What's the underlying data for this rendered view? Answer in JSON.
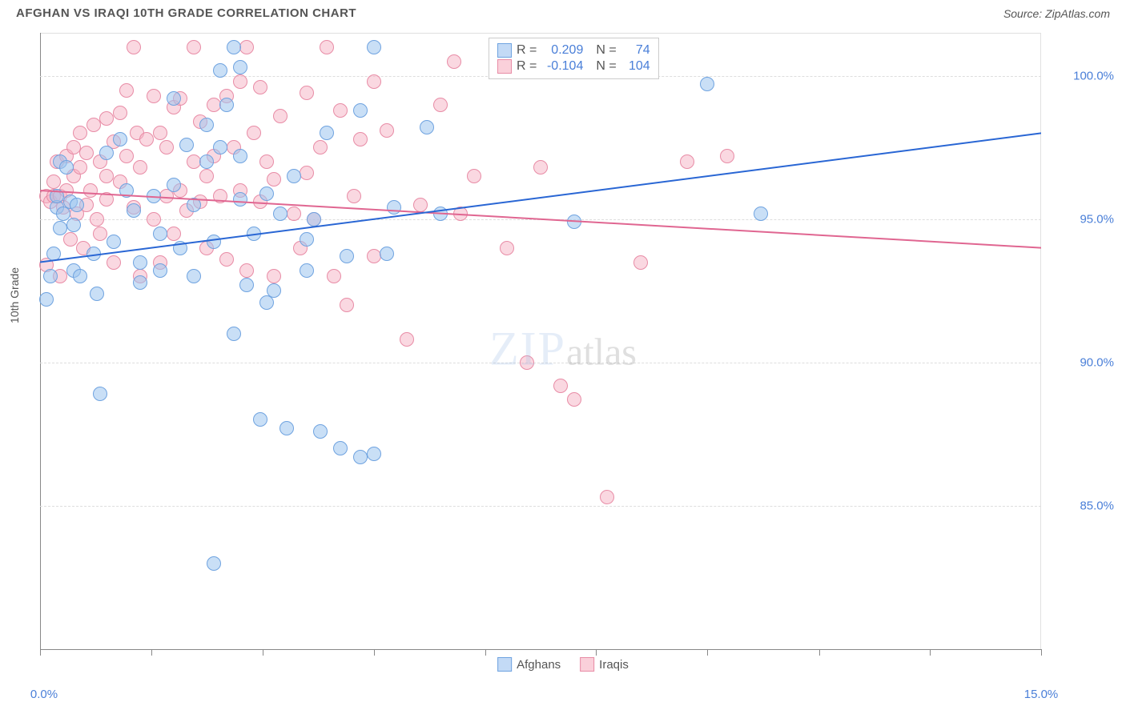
{
  "title": "AFGHAN VS IRAQI 10TH GRADE CORRELATION CHART",
  "source": "Source: ZipAtlas.com",
  "ylabel": "10th Grade",
  "watermark_zip": "ZIP",
  "watermark_atlas": "atlas",
  "chart": {
    "type": "scatter",
    "background_color": "#ffffff",
    "grid_color": "#dddddd",
    "axis_color": "#888888",
    "text_color": "#555555",
    "value_color": "#4a7fd8",
    "xlim": [
      0,
      15
    ],
    "ylim": [
      80,
      101.5
    ],
    "xticks": [
      0,
      1.67,
      3.33,
      5.0,
      6.67,
      8.33,
      10.0,
      11.67,
      13.33,
      15.0
    ],
    "xtick_labels": {
      "0": "0.0%",
      "15": "15.0%"
    },
    "yticks": [
      85,
      90,
      95,
      100
    ],
    "ytick_labels": [
      "85.0%",
      "90.0%",
      "95.0%",
      "100.0%"
    ],
    "point_radius": 9,
    "point_stroke_width": 1.5,
    "trend_width": 2
  },
  "legend_bottom": [
    {
      "label": "Afghans",
      "fill": "#c3daf6",
      "stroke": "#6fa3e0"
    },
    {
      "label": "Iraqis",
      "fill": "#fad0da",
      "stroke": "#e88ca6"
    }
  ],
  "stats": [
    {
      "fill": "#c3daf6",
      "stroke": "#6fa3e0",
      "r_label": "R =",
      "r_val": "0.209",
      "n_label": "N =",
      "n_val": "74"
    },
    {
      "fill": "#fad0da",
      "stroke": "#e88ca6",
      "r_label": "R =",
      "r_val": "-0.104",
      "n_label": "N =",
      "n_val": "104"
    }
  ],
  "series": {
    "afghans": {
      "fill": "rgba(157,197,238,0.55)",
      "stroke": "#6fa3e0",
      "trend_color": "#2966d4",
      "trend": {
        "x1": 0,
        "y1": 93.5,
        "x2": 15,
        "y2": 98.0
      },
      "points": [
        [
          0.1,
          92.2
        ],
        [
          0.15,
          93.0
        ],
        [
          0.2,
          93.8
        ],
        [
          0.25,
          95.4
        ],
        [
          0.25,
          95.8
        ],
        [
          0.3,
          97.0
        ],
        [
          0.3,
          94.7
        ],
        [
          0.35,
          95.2
        ],
        [
          0.4,
          96.8
        ],
        [
          0.45,
          95.6
        ],
        [
          0.5,
          93.2
        ],
        [
          0.5,
          94.8
        ],
        [
          0.55,
          95.5
        ],
        [
          0.6,
          93.0
        ],
        [
          0.8,
          93.8
        ],
        [
          0.85,
          92.4
        ],
        [
          0.9,
          88.9
        ],
        [
          1.0,
          97.3
        ],
        [
          1.1,
          94.2
        ],
        [
          1.2,
          97.8
        ],
        [
          1.4,
          95.3
        ],
        [
          1.5,
          92.8
        ],
        [
          1.5,
          93.5
        ],
        [
          1.7,
          95.8
        ],
        [
          1.8,
          94.5
        ],
        [
          1.8,
          93.2
        ],
        [
          2.0,
          99.2
        ],
        [
          2.1,
          94.0
        ],
        [
          2.2,
          97.6
        ],
        [
          2.3,
          93.0
        ],
        [
          2.3,
          95.5
        ],
        [
          2.5,
          98.3
        ],
        [
          2.5,
          97.0
        ],
        [
          2.6,
          94.2
        ],
        [
          2.6,
          83.0
        ],
        [
          2.7,
          100.2
        ],
        [
          2.7,
          97.5
        ],
        [
          2.8,
          99.0
        ],
        [
          2.9,
          101.0
        ],
        [
          2.9,
          91.0
        ],
        [
          3.0,
          95.7
        ],
        [
          3.0,
          97.2
        ],
        [
          3.0,
          100.3
        ],
        [
          3.1,
          92.7
        ],
        [
          3.2,
          94.5
        ],
        [
          3.3,
          88.0
        ],
        [
          3.4,
          92.1
        ],
        [
          3.4,
          95.9
        ],
        [
          3.5,
          92.5
        ],
        [
          3.6,
          95.2
        ],
        [
          3.7,
          87.7
        ],
        [
          3.8,
          96.5
        ],
        [
          4.0,
          94.3
        ],
        [
          4.0,
          93.2
        ],
        [
          4.1,
          95.0
        ],
        [
          4.2,
          87.6
        ],
        [
          4.3,
          98.0
        ],
        [
          4.5,
          87.0
        ],
        [
          4.6,
          93.7
        ],
        [
          4.8,
          86.7
        ],
        [
          4.8,
          98.8
        ],
        [
          5.0,
          86.8
        ],
        [
          5.0,
          101.0
        ],
        [
          5.2,
          93.8
        ],
        [
          5.3,
          95.4
        ],
        [
          5.8,
          98.2
        ],
        [
          6.0,
          95.2
        ],
        [
          8.0,
          94.9
        ],
        [
          8.5,
          101.0
        ],
        [
          9.0,
          101.0
        ],
        [
          10.0,
          99.7
        ],
        [
          10.8,
          95.2
        ],
        [
          2.0,
          96.2
        ],
        [
          1.3,
          96.0
        ]
      ]
    },
    "iraqis": {
      "fill": "rgba(245,177,196,0.5)",
      "stroke": "#e88ca6",
      "trend_color": "#e06691",
      "trend": {
        "x1": 0,
        "y1": 96.0,
        "x2": 15,
        "y2": 94.0
      },
      "points": [
        [
          0.1,
          95.8
        ],
        [
          0.1,
          93.4
        ],
        [
          0.15,
          95.6
        ],
        [
          0.2,
          95.8
        ],
        [
          0.2,
          96.3
        ],
        [
          0.25,
          97.0
        ],
        [
          0.3,
          95.8
        ],
        [
          0.3,
          93.0
        ],
        [
          0.35,
          95.4
        ],
        [
          0.4,
          96.0
        ],
        [
          0.4,
          97.2
        ],
        [
          0.45,
          94.3
        ],
        [
          0.5,
          96.5
        ],
        [
          0.5,
          97.5
        ],
        [
          0.55,
          95.2
        ],
        [
          0.6,
          96.8
        ],
        [
          0.6,
          98.0
        ],
        [
          0.65,
          94.0
        ],
        [
          0.7,
          95.5
        ],
        [
          0.7,
          97.3
        ],
        [
          0.75,
          96.0
        ],
        [
          0.8,
          98.3
        ],
        [
          0.85,
          95.0
        ],
        [
          0.9,
          97.0
        ],
        [
          0.9,
          94.5
        ],
        [
          1.0,
          98.5
        ],
        [
          1.0,
          96.5
        ],
        [
          1.0,
          95.7
        ],
        [
          1.1,
          97.7
        ],
        [
          1.1,
          93.5
        ],
        [
          1.2,
          98.7
        ],
        [
          1.2,
          96.3
        ],
        [
          1.3,
          99.5
        ],
        [
          1.3,
          97.2
        ],
        [
          1.4,
          95.4
        ],
        [
          1.4,
          101.0
        ],
        [
          1.45,
          98.0
        ],
        [
          1.5,
          93.0
        ],
        [
          1.5,
          96.8
        ],
        [
          1.6,
          97.8
        ],
        [
          1.7,
          99.3
        ],
        [
          1.7,
          95.0
        ],
        [
          1.8,
          98.0
        ],
        [
          1.8,
          93.5
        ],
        [
          1.9,
          97.5
        ],
        [
          1.9,
          95.8
        ],
        [
          2.0,
          98.9
        ],
        [
          2.0,
          94.5
        ],
        [
          2.1,
          99.2
        ],
        [
          2.1,
          96.0
        ],
        [
          2.2,
          95.3
        ],
        [
          2.3,
          101.0
        ],
        [
          2.3,
          97.0
        ],
        [
          2.4,
          98.4
        ],
        [
          2.4,
          95.6
        ],
        [
          2.5,
          96.5
        ],
        [
          2.5,
          94.0
        ],
        [
          2.6,
          99.0
        ],
        [
          2.6,
          97.2
        ],
        [
          2.7,
          95.8
        ],
        [
          2.8,
          99.3
        ],
        [
          2.8,
          93.6
        ],
        [
          2.9,
          97.5
        ],
        [
          3.0,
          99.8
        ],
        [
          3.0,
          96.0
        ],
        [
          3.1,
          101.0
        ],
        [
          3.1,
          93.2
        ],
        [
          3.2,
          98.0
        ],
        [
          3.3,
          95.6
        ],
        [
          3.3,
          99.6
        ],
        [
          3.4,
          97.0
        ],
        [
          3.5,
          93.0
        ],
        [
          3.5,
          96.4
        ],
        [
          3.6,
          98.6
        ],
        [
          3.8,
          95.2
        ],
        [
          3.9,
          94.0
        ],
        [
          4.0,
          99.4
        ],
        [
          4.0,
          96.6
        ],
        [
          4.1,
          95.0
        ],
        [
          4.2,
          97.5
        ],
        [
          4.3,
          101.0
        ],
        [
          4.4,
          93.0
        ],
        [
          4.5,
          98.8
        ],
        [
          4.6,
          92.0
        ],
        [
          4.7,
          95.8
        ],
        [
          4.8,
          97.8
        ],
        [
          5.0,
          99.8
        ],
        [
          5.0,
          93.7
        ],
        [
          5.2,
          98.1
        ],
        [
          5.5,
          90.8
        ],
        [
          5.7,
          95.5
        ],
        [
          6.0,
          99.0
        ],
        [
          6.2,
          100.5
        ],
        [
          6.3,
          95.2
        ],
        [
          6.5,
          96.5
        ],
        [
          7.0,
          94.0
        ],
        [
          7.3,
          90.0
        ],
        [
          7.5,
          96.8
        ],
        [
          7.8,
          89.2
        ],
        [
          8.0,
          88.7
        ],
        [
          8.5,
          85.3
        ],
        [
          9.0,
          93.5
        ],
        [
          9.7,
          97.0
        ],
        [
          10.3,
          97.2
        ]
      ]
    }
  }
}
